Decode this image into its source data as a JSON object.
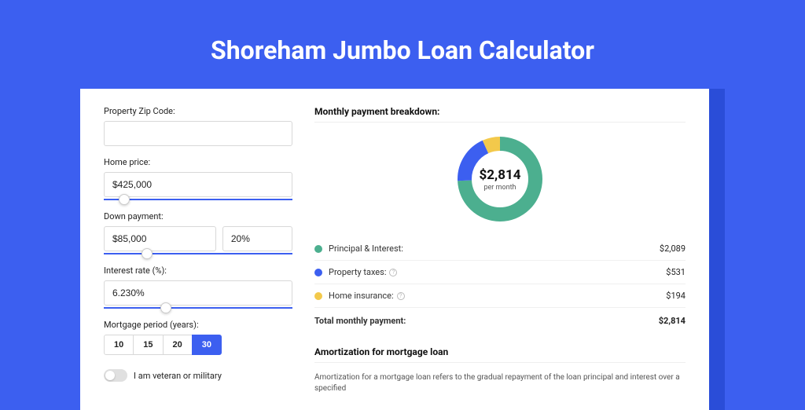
{
  "title": "Shoreham Jumbo Loan Calculator",
  "colors": {
    "page_bg": "#3c5ff0",
    "accent": "#3c5ff0",
    "principal": "#4caf8f",
    "taxes": "#3c5ff0",
    "insurance": "#f3c94b"
  },
  "form": {
    "zip": {
      "label": "Property Zip Code:",
      "value": ""
    },
    "home_price": {
      "label": "Home price:",
      "value": "$425,000",
      "slider_pct": 8
    },
    "down_payment": {
      "label": "Down payment:",
      "value": "$85,000",
      "pct_value": "20%",
      "slider_pct": 20
    },
    "interest_rate": {
      "label": "Interest rate (%):",
      "value": "6.230%",
      "slider_pct": 30
    },
    "mortgage_period": {
      "label": "Mortgage period (years):",
      "options": [
        "10",
        "15",
        "20",
        "30"
      ],
      "active": "30"
    },
    "veteran": {
      "label": "I am veteran or military",
      "checked": false
    }
  },
  "breakdown": {
    "title": "Monthly payment breakdown:",
    "center_amount": "$2,814",
    "center_sub": "per month",
    "items": [
      {
        "label": "Principal & Interest:",
        "value": "$2,089",
        "color": "#4caf8f",
        "info": false,
        "pct": 74.2
      },
      {
        "label": "Property taxes:",
        "value": "$531",
        "color": "#3c5ff0",
        "info": true,
        "pct": 18.9
      },
      {
        "label": "Home insurance:",
        "value": "$194",
        "color": "#f3c94b",
        "info": true,
        "pct": 6.9
      }
    ],
    "total_label": "Total monthly payment:",
    "total_value": "$2,814"
  },
  "amortization": {
    "title": "Amortization for mortgage loan",
    "text": "Amortization for a mortgage loan refers to the gradual repayment of the loan principal and interest over a specified"
  }
}
